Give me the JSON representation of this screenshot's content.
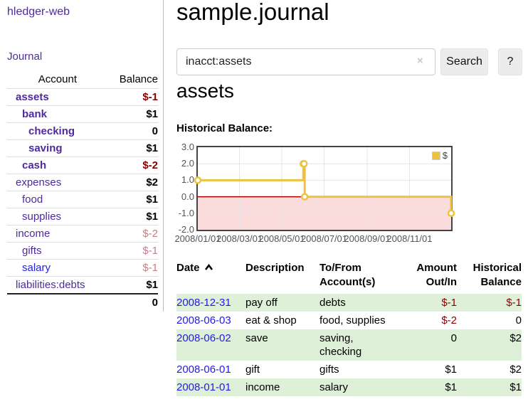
{
  "app": {
    "title": "hledger-web",
    "nav_journal": "Journal"
  },
  "sidebar": {
    "table": {
      "headers": {
        "account": "Account",
        "balance": "Balance"
      },
      "rows": [
        {
          "account": "assets",
          "balance": "$-1",
          "level": 1,
          "bold": true,
          "balance_class": "neg"
        },
        {
          "account": "bank",
          "balance": "$1",
          "level": 2,
          "bold": true,
          "balance_class": ""
        },
        {
          "account": "checking",
          "balance": "0",
          "level": 3,
          "bold": true,
          "balance_class": ""
        },
        {
          "account": "saving",
          "balance": "$1",
          "level": 3,
          "bold": true,
          "balance_class": ""
        },
        {
          "account": "cash",
          "balance": "$-2",
          "level": 2,
          "bold": true,
          "balance_class": "neg"
        },
        {
          "account": "expenses",
          "balance": "$2",
          "level": 1,
          "bold": false,
          "balance_class": ""
        },
        {
          "account": "food",
          "balance": "$1",
          "level": 2,
          "bold": false,
          "balance_class": ""
        },
        {
          "account": "supplies",
          "balance": "$1",
          "level": 2,
          "bold": false,
          "balance_class": ""
        },
        {
          "account": "income",
          "balance": "$-2",
          "level": 1,
          "bold": false,
          "balance_class": "neg-dim"
        },
        {
          "account": "gifts",
          "balance": "$-1",
          "level": 2,
          "bold": false,
          "balance_class": "neg-dim"
        },
        {
          "account": "salary",
          "balance": "$-1",
          "level": 2,
          "bold": false,
          "balance_class": "neg-dim",
          "link_class": "blue"
        },
        {
          "account": "liabilities:debts",
          "balance": "$1",
          "level": 1,
          "bold": false,
          "balance_class": ""
        }
      ],
      "total": "0"
    }
  },
  "header": {
    "title": "sample.journal"
  },
  "search": {
    "value": "inacct:assets",
    "clear_icon": "×",
    "button_label": "Search",
    "help_label": "?"
  },
  "register": {
    "heading": "assets",
    "chart_label": "Historical Balance:"
  },
  "chart_data": {
    "type": "line",
    "title": "Historical Balance",
    "step": true,
    "x": [
      "2008-01-01",
      "2008-06-01",
      "2008-06-02",
      "2008-06-03",
      "2008-12-31"
    ],
    "values": [
      1,
      2,
      2,
      0,
      -1
    ],
    "xlim": [
      "2008-01-01",
      "2008-12-31"
    ],
    "ylim": [
      -2,
      3
    ],
    "yticks": [
      "3.0",
      "2.0",
      "1.0",
      "0.0",
      "-1.0",
      "-2.0"
    ],
    "xticks": [
      "2008/01/01",
      "2008/03/01",
      "2008/05/01",
      "2008/07/01",
      "2008/09/01",
      "2008/11/01"
    ],
    "legend": [
      {
        "label": "$",
        "color": "#EDC240"
      }
    ],
    "series_color": "#EDC240",
    "negative_region_fill": "#fbdcdc",
    "zero_line_color": "#a40000",
    "grid_color": "#e5e5e5",
    "legend_position": "top-right"
  },
  "table": {
    "headers": {
      "date": "Date",
      "description": "Description",
      "accounts": "To/From Account(s)",
      "amount": "Amount Out/In",
      "balance": "Historical Balance"
    },
    "rows": [
      {
        "date": "2008-12-31",
        "description": "pay off",
        "accounts": "debts",
        "amount": "$-1",
        "amount_neg": true,
        "balance": "$-1",
        "balance_neg": true
      },
      {
        "date": "2008-06-03",
        "description": "eat & shop",
        "accounts": "food, supplies",
        "amount": "$-2",
        "amount_neg": true,
        "balance": "0",
        "balance_neg": false
      },
      {
        "date": "2008-06-02",
        "description": "save",
        "accounts": "saving, checking",
        "amount": "0",
        "amount_neg": false,
        "balance": "$2",
        "balance_neg": false
      },
      {
        "date": "2008-06-01",
        "description": "gift",
        "accounts": "gifts",
        "amount": "$1",
        "amount_neg": false,
        "balance": "$2",
        "balance_neg": false
      },
      {
        "date": "2008-01-01",
        "description": "income",
        "accounts": "salary",
        "amount": "$1",
        "amount_neg": false,
        "balance": "$1",
        "balance_neg": false
      }
    ]
  }
}
